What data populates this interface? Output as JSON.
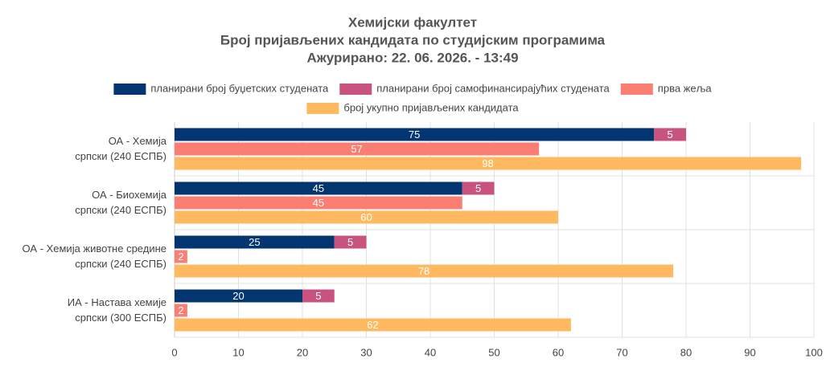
{
  "chart_data": {
    "type": "hbar",
    "title": [
      "Хемијски факултет",
      "Број пријављених кандидата по студијским програмима",
      "Ажурирано: 22. 06. 2026. - 13:49"
    ],
    "categories": [
      [
        "ОА - Хемија",
        "српски (240 ЕСПБ)"
      ],
      [
        "ОА - Биохемија",
        "српски (240 ЕСПБ)"
      ],
      [
        "ОА - Хемија животне средине",
        "српски (240 ЕСПБ)"
      ],
      [
        "ИА - Настава хемије",
        "српски (300 ЕСПБ)"
      ]
    ],
    "series": [
      {
        "name": "планирани број буџетских студената",
        "color": "#033570",
        "values": [
          75,
          45,
          25,
          20
        ]
      },
      {
        "name": "планирани број самофинансирајућих студената",
        "color": "#c9537f",
        "values": [
          5,
          5,
          5,
          5
        ],
        "stack": true
      },
      {
        "name": "прва жеља",
        "color": "#fa7f72",
        "values": [
          57,
          45,
          2,
          2
        ]
      },
      {
        "name": "број укупно пријављених кандидата",
        "color": "#ffb960",
        "values": [
          98,
          60,
          78,
          62
        ]
      }
    ],
    "xlim": [
      0,
      100
    ],
    "xticks": [
      0,
      10,
      20,
      30,
      40,
      50,
      60,
      70,
      80,
      90,
      100
    ],
    "grid": true,
    "legend": "top"
  }
}
